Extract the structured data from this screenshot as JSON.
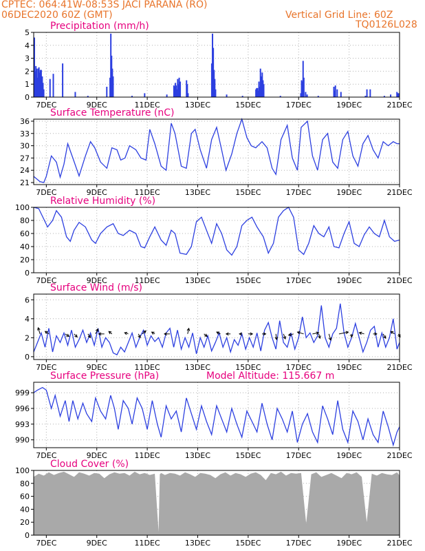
{
  "header": {
    "line1_left": "CPTEC:   064:41W-08:53S   JACI PARANA (RO)",
    "line2_left": "06DEC2020 60Z (GMT)",
    "line1_right": "Vertical Grid Line: 60Z",
    "line2_right": "TQ0126L028"
  },
  "colors": {
    "header": "#e8742a",
    "title": "#e6007e",
    "series": "#2c3fe0",
    "cloud": "#a9a9a9",
    "grid": "#b0b0b0"
  },
  "chart_data": [
    {
      "type": "bar",
      "title": "Precipitation (mm/h)",
      "x_tick_labels": [
        "7DEC",
        "9DEC",
        "11DEC",
        "13DEC",
        "15DEC",
        "17DEC",
        "19DEC",
        "21DEC"
      ],
      "x_day_range": [
        6.5,
        21.0
      ],
      "ylim": [
        0,
        5
      ],
      "y_ticks": [
        0,
        1,
        2,
        3,
        4,
        5
      ],
      "grid": true,
      "x": [
        6.5,
        6.53,
        6.56,
        6.59,
        6.62,
        6.65,
        6.68,
        6.71,
        6.74,
        6.77,
        6.81,
        6.84,
        6.87,
        7.12,
        7.25,
        7.62,
        8.12,
        8.62,
        9.37,
        9.5,
        9.53,
        9.56,
        9.59,
        9.62,
        10.37,
        10.87,
        11.75,
        12.03,
        12.06,
        12.09,
        12.12,
        12.15,
        12.18,
        12.21,
        12.24,
        12.28,
        12.53,
        12.56,
        12.59,
        13.53,
        13.56,
        13.59,
        13.62,
        13.65,
        13.68,
        14.12,
        14.75,
        15.28,
        15.31,
        15.34,
        15.37,
        15.4,
        15.43,
        15.46,
        15.5,
        15.53,
        15.56,
        15.59,
        16.25,
        17.06,
        17.09,
        17.12,
        17.15,
        17.18,
        17.25,
        17.31,
        17.75,
        18.37,
        18.4,
        18.43,
        18.5,
        18.65,
        19.62,
        19.68,
        19.81,
        20.37,
        20.62,
        20.87,
        20.9,
        20.93
      ],
      "values": [
        4.6,
        2.0,
        2.4,
        2.2,
        1.5,
        2.2,
        2.3,
        1.9,
        2.1,
        2.1,
        1.6,
        1.1,
        0.6,
        1.4,
        1.8,
        2.6,
        0.4,
        0.1,
        0.8,
        1.5,
        4.9,
        3.2,
        2.2,
        1.6,
        0.1,
        0.3,
        0.2,
        0.9,
        0.8,
        1.1,
        0.9,
        0.6,
        1.4,
        1.0,
        1.5,
        1.2,
        1.3,
        1.0,
        0.3,
        2.6,
        4.9,
        3.8,
        2.1,
        1.4,
        0.6,
        0.2,
        0.1,
        0.6,
        0.7,
        0.7,
        0.5,
        1.2,
        0.8,
        2.2,
        1.6,
        1.9,
        1.3,
        1.0,
        0.1,
        0.3,
        1.3,
        1.2,
        2.8,
        1.5,
        0.4,
        0.2,
        0.1,
        0.8,
        0.5,
        0.9,
        0.6,
        0.4,
        0.1,
        0.6,
        0.6,
        0.1,
        0.2,
        0.4,
        0.3,
        0.3
      ]
    },
    {
      "type": "line",
      "title": "Surface Temperature (nC)",
      "x_tick_labels": [
        "7DEC",
        "9DEC",
        "11DEC",
        "13DEC",
        "15DEC",
        "17DEC",
        "19DEC",
        "21DEC"
      ],
      "x_day_range": [
        6.5,
        21.0
      ],
      "ylim": [
        20.5,
        36.5
      ],
      "y_ticks": [
        21,
        24,
        27,
        30,
        33,
        36
      ],
      "grid": true,
      "x": [
        6.5,
        6.75,
        6.9,
        7.0,
        7.2,
        7.4,
        7.55,
        7.7,
        7.85,
        8.05,
        8.3,
        8.55,
        8.75,
        8.92,
        9.15,
        9.4,
        9.6,
        9.8,
        9.95,
        10.12,
        10.3,
        10.55,
        10.75,
        10.95,
        11.1,
        11.3,
        11.55,
        11.75,
        11.95,
        12.1,
        12.35,
        12.55,
        12.75,
        12.9,
        13.1,
        13.35,
        13.55,
        13.75,
        13.95,
        14.12,
        14.35,
        14.55,
        14.75,
        14.95,
        15.12,
        15.3,
        15.55,
        15.75,
        15.95,
        16.1,
        16.3,
        16.55,
        16.75,
        16.95,
        17.1,
        17.35,
        17.55,
        17.75,
        17.95,
        18.15,
        18.35,
        18.55,
        18.75,
        18.95,
        19.15,
        19.35,
        19.55,
        19.75,
        19.95,
        20.15,
        20.35,
        20.55,
        20.75,
        20.9,
        21.0
      ],
      "values": [
        22.5,
        21.2,
        21.0,
        22.5,
        27.5,
        26.0,
        22.3,
        25.5,
        30.5,
        27.0,
        22.6,
        27.5,
        31.0,
        29.5,
        26.0,
        24.5,
        29.5,
        29.0,
        26.5,
        27.0,
        30.0,
        29.0,
        27.0,
        26.5,
        34.0,
        30.5,
        25.0,
        24.0,
        35.5,
        33.0,
        25.0,
        24.5,
        33.0,
        34.0,
        29.0,
        24.5,
        31.5,
        34.5,
        29.0,
        24.0,
        28.0,
        33.0,
        36.5,
        32.0,
        30.0,
        29.5,
        31.0,
        29.5,
        24.5,
        23.0,
        31.5,
        35.0,
        27.0,
        24.0,
        34.5,
        36.0,
        27.5,
        24.0,
        31.5,
        33.0,
        26.0,
        24.5,
        31.5,
        33.5,
        27.5,
        25.0,
        30.5,
        32.5,
        29.0,
        27.0,
        31.0,
        30.0,
        31.0,
        30.5,
        30.5
      ]
    },
    {
      "type": "line",
      "title": "Relative Humidity (%)",
      "x_tick_labels": [
        "7DEC",
        "9DEC",
        "11DEC",
        "13DEC",
        "15DEC",
        "17DEC",
        "19DEC",
        "21DEC"
      ],
      "x_day_range": [
        6.5,
        21.0
      ],
      "ylim": [
        0,
        100
      ],
      "y_ticks": [
        0,
        20,
        40,
        60,
        80,
        100
      ],
      "grid": true,
      "x": [
        6.5,
        6.7,
        6.9,
        7.05,
        7.25,
        7.4,
        7.6,
        7.8,
        7.95,
        8.1,
        8.3,
        8.55,
        8.8,
        8.95,
        9.15,
        9.4,
        9.65,
        9.85,
        10.05,
        10.3,
        10.55,
        10.75,
        10.9,
        11.1,
        11.3,
        11.55,
        11.75,
        11.95,
        12.1,
        12.3,
        12.55,
        12.75,
        12.95,
        13.15,
        13.35,
        13.55,
        13.75,
        13.95,
        14.15,
        14.35,
        14.55,
        14.75,
        14.95,
        15.15,
        15.35,
        15.6,
        15.8,
        16.0,
        16.2,
        16.4,
        16.6,
        16.8,
        17.0,
        17.2,
        17.4,
        17.6,
        17.8,
        18.0,
        18.2,
        18.4,
        18.6,
        18.8,
        19.0,
        19.2,
        19.4,
        19.6,
        19.8,
        20.0,
        20.2,
        20.4,
        20.6,
        20.8,
        21.0
      ],
      "values": [
        100,
        98,
        82,
        70,
        80,
        95,
        85,
        55,
        48,
        65,
        77,
        70,
        50,
        45,
        60,
        70,
        75,
        60,
        57,
        65,
        60,
        40,
        38,
        55,
        70,
        50,
        42,
        65,
        60,
        30,
        28,
        40,
        78,
        85,
        65,
        45,
        75,
        60,
        35,
        27,
        40,
        72,
        80,
        85,
        70,
        55,
        30,
        45,
        85,
        95,
        100,
        85,
        35,
        28,
        45,
        72,
        60,
        55,
        70,
        40,
        38,
        60,
        78,
        45,
        40,
        58,
        70,
        60,
        55,
        80,
        55,
        48,
        50
      ]
    },
    {
      "type": "line",
      "title": "Surface Wind (m/s)",
      "x_tick_labels": [
        "7DEC",
        "9DEC",
        "11DEC",
        "13DEC",
        "15DEC",
        "17DEC",
        "19DEC",
        "21DEC"
      ],
      "x_day_range": [
        6.5,
        21.0
      ],
      "ylim": [
        -0.3,
        6.6
      ],
      "y_ticks": [
        0,
        2,
        4,
        6
      ],
      "grid": true,
      "x": [
        6.5,
        6.65,
        6.8,
        6.95,
        7.1,
        7.25,
        7.4,
        7.55,
        7.7,
        7.85,
        8.0,
        8.15,
        8.3,
        8.45,
        8.6,
        8.75,
        8.9,
        9.05,
        9.2,
        9.35,
        9.5,
        9.65,
        9.8,
        9.95,
        10.1,
        10.25,
        10.4,
        10.55,
        10.7,
        10.85,
        11.0,
        11.15,
        11.3,
        11.45,
        11.6,
        11.75,
        11.9,
        12.05,
        12.2,
        12.35,
        12.5,
        12.65,
        12.8,
        12.95,
        13.1,
        13.25,
        13.4,
        13.55,
        13.7,
        13.85,
        14.0,
        14.15,
        14.3,
        14.45,
        14.6,
        14.75,
        14.9,
        15.05,
        15.2,
        15.35,
        15.5,
        15.65,
        15.8,
        15.95,
        16.1,
        16.25,
        16.4,
        16.55,
        16.7,
        16.85,
        17.0,
        17.15,
        17.3,
        17.45,
        17.6,
        17.75,
        17.9,
        18.05,
        18.2,
        18.35,
        18.5,
        18.65,
        18.8,
        18.95,
        19.1,
        19.25,
        19.4,
        19.55,
        19.7,
        19.85,
        20.0,
        20.15,
        20.3,
        20.45,
        20.6,
        20.75,
        20.9,
        21.0
      ],
      "values": [
        0.5,
        1.5,
        2.5,
        1.0,
        3.0,
        0.5,
        2.2,
        1.5,
        2.5,
        1.2,
        2.8,
        1.0,
        1.8,
        2.8,
        1.5,
        2.5,
        1.2,
        3.0,
        1.0,
        2.0,
        1.5,
        0.4,
        0.2,
        1.0,
        0.5,
        1.5,
        2.5,
        1.0,
        2.0,
        2.8,
        1.2,
        2.2,
        1.6,
        2.0,
        1.0,
        2.5,
        3.0,
        1.0,
        2.8,
        0.8,
        2.0,
        1.0,
        2.5,
        0.3,
        2.0,
        1.0,
        2.2,
        0.6,
        1.5,
        2.5,
        1.0,
        2.0,
        0.5,
        1.8,
        1.2,
        2.4,
        0.8,
        2.0,
        1.0,
        2.5,
        0.6,
        2.8,
        3.6,
        2.0,
        0.8,
        3.8,
        1.5,
        1.0,
        2.5,
        0.8,
        2.0,
        4.2,
        2.0,
        2.5,
        1.5,
        2.2,
        5.4,
        2.0,
        1.0,
        2.4,
        3.0,
        5.6,
        2.5,
        1.0,
        2.0,
        3.5,
        2.0,
        0.5,
        1.5,
        2.8,
        3.2,
        1.0,
        2.5,
        1.0,
        2.0,
        4.0,
        0.8,
        1.5
      ],
      "wind_arrows": [
        {
          "day": 6.75,
          "u": -0.3,
          "v": 1.0
        },
        {
          "day": 7.1,
          "u": -0.6,
          "v": 0.4
        },
        {
          "day": 7.75,
          "u": 0.6,
          "v": -0.4
        },
        {
          "day": 8.1,
          "u": 0.5,
          "v": -0.5
        },
        {
          "day": 8.65,
          "u": 0.4,
          "v": -0.6
        },
        {
          "day": 8.95,
          "u": 0.4,
          "v": 0.8
        },
        {
          "day": 9.3,
          "u": -0.9,
          "v": 0.0
        },
        {
          "day": 9.6,
          "u": -0.5,
          "v": 0.4
        },
        {
          "day": 10.25,
          "u": -0.6,
          "v": 0.2
        },
        {
          "day": 10.65,
          "u": 0.3,
          "v": -0.6
        },
        {
          "day": 10.8,
          "u": 0.6,
          "v": 0.5
        },
        {
          "day": 11.3,
          "u": -0.5,
          "v": 0.3
        },
        {
          "day": 11.9,
          "u": -0.9,
          "v": 0.0
        },
        {
          "day": 12.6,
          "u": 0.2,
          "v": 0.9
        },
        {
          "day": 13.25,
          "u": 0.5,
          "v": -0.4
        },
        {
          "day": 13.9,
          "u": -0.6,
          "v": 0.3
        },
        {
          "day": 14.3,
          "u": -0.7,
          "v": 0.0
        },
        {
          "day": 14.75,
          "u": -0.4,
          "v": 0.0
        },
        {
          "day": 15.0,
          "u": 0.7,
          "v": 0.0
        },
        {
          "day": 15.55,
          "u": 0.6,
          "v": 0.0
        },
        {
          "day": 16.1,
          "u": 0.1,
          "v": -0.9
        },
        {
          "day": 16.4,
          "u": 0.3,
          "v": -0.8
        },
        {
          "day": 16.8,
          "u": -0.8,
          "v": -0.2
        },
        {
          "day": 17.2,
          "u": -1.0,
          "v": 0.3
        },
        {
          "day": 17.55,
          "u": 1.0,
          "v": 0.2
        },
        {
          "day": 17.8,
          "u": 0.2,
          "v": -0.7
        },
        {
          "day": 18.2,
          "u": 0.3,
          "v": -1.0
        },
        {
          "day": 18.6,
          "u": 1.5,
          "v": 0.3
        },
        {
          "day": 19.1,
          "u": 0.0,
          "v": -0.5
        },
        {
          "day": 19.6,
          "u": -0.8,
          "v": 0.2
        },
        {
          "day": 19.95,
          "u": 0.6,
          "v": 0.0
        },
        {
          "day": 20.35,
          "u": 0.4,
          "v": -0.7
        },
        {
          "day": 20.8,
          "u": -0.6,
          "v": 0.4
        },
        {
          "day": 20.95,
          "u": 0.3,
          "v": -0.5
        }
      ]
    },
    {
      "type": "line",
      "title": "Surface Pressure (hPa)",
      "annotation": "Model Altitude: 115.667 m",
      "x_tick_labels": [
        "7DEC",
        "9DEC",
        "11DEC",
        "13DEC",
        "15DEC",
        "17DEC",
        "19DEC",
        "21DEC"
      ],
      "x_day_range": [
        6.5,
        21.0
      ],
      "ylim": [
        988.5,
        1001.0
      ],
      "y_ticks": [
        990,
        993,
        996,
        999
      ],
      "grid": true,
      "x": [
        6.5,
        6.65,
        6.85,
        7.0,
        7.2,
        7.35,
        7.55,
        7.75,
        7.9,
        8.05,
        8.25,
        8.45,
        8.6,
        8.8,
        8.95,
        9.15,
        9.35,
        9.55,
        9.7,
        9.85,
        10.05,
        10.25,
        10.4,
        10.6,
        10.8,
        11.0,
        11.2,
        11.4,
        11.55,
        11.75,
        11.95,
        12.15,
        12.35,
        12.55,
        12.75,
        12.95,
        13.15,
        13.35,
        13.55,
        13.75,
        13.95,
        14.15,
        14.35,
        14.55,
        14.75,
        14.95,
        15.15,
        15.35,
        15.55,
        15.75,
        15.95,
        16.15,
        16.35,
        16.55,
        16.75,
        16.95,
        17.15,
        17.35,
        17.55,
        17.75,
        17.95,
        18.15,
        18.35,
        18.55,
        18.75,
        18.95,
        19.15,
        19.35,
        19.55,
        19.75,
        19.95,
        20.15,
        20.35,
        20.55,
        20.75,
        20.9,
        21.0
      ],
      "values": [
        999.0,
        999.5,
        1000.0,
        999.5,
        996.0,
        998.5,
        994.5,
        997.5,
        993.5,
        997.5,
        994.0,
        997.0,
        995.0,
        993.5,
        998.0,
        995.5,
        994.0,
        998.5,
        996.0,
        992.0,
        997.5,
        996.0,
        993.0,
        998.0,
        996.0,
        992.0,
        997.5,
        993.0,
        990.5,
        996.5,
        994.0,
        995.5,
        991.5,
        998.0,
        995.0,
        992.0,
        996.5,
        993.5,
        991.0,
        996.5,
        994.0,
        991.5,
        996.0,
        993.0,
        990.5,
        995.5,
        993.5,
        991.5,
        997.0,
        993.0,
        990.0,
        996.0,
        994.0,
        991.5,
        995.5,
        989.5,
        993.0,
        995.0,
        991.5,
        989.5,
        996.5,
        994.0,
        991.0,
        997.5,
        992.0,
        989.5,
        995.5,
        993.5,
        990.0,
        994.0,
        991.0,
        989.5,
        995.5,
        992.5,
        989.0,
        991.5,
        992.5
      ]
    },
    {
      "type": "area",
      "title": "Cloud Cover (%)",
      "x_tick_labels": [
        "7DEC",
        "9DEC",
        "11DEC",
        "13DEC",
        "15DEC",
        "17DEC",
        "19DEC",
        "21DEC"
      ],
      "x_day_range": [
        6.5,
        21.0
      ],
      "ylim": [
        0,
        100
      ],
      "y_ticks": [
        0,
        20,
        40,
        60,
        80,
        100
      ],
      "grid": true,
      "x": [
        6.5,
        6.7,
        6.9,
        7.1,
        7.3,
        7.5,
        7.7,
        7.9,
        8.1,
        8.3,
        8.5,
        8.7,
        8.9,
        9.1,
        9.3,
        9.5,
        9.7,
        9.9,
        10.1,
        10.3,
        10.5,
        10.7,
        10.9,
        11.1,
        11.3,
        11.45,
        11.5,
        11.55,
        11.7,
        11.9,
        12.1,
        12.3,
        12.5,
        12.7,
        12.9,
        13.1,
        13.3,
        13.5,
        13.7,
        13.9,
        14.1,
        14.3,
        14.5,
        14.7,
        14.9,
        15.1,
        15.3,
        15.5,
        15.7,
        15.9,
        16.1,
        16.3,
        16.5,
        16.7,
        16.9,
        17.1,
        17.3,
        17.5,
        17.7,
        17.9,
        18.1,
        18.3,
        18.5,
        18.7,
        18.9,
        19.1,
        19.3,
        19.5,
        19.7,
        19.9,
        20.1,
        20.3,
        20.5,
        20.7,
        20.9,
        21.0
      ],
      "values": [
        90,
        95,
        92,
        97,
        93,
        96,
        98,
        94,
        90,
        97,
        95,
        92,
        96,
        95,
        88,
        94,
        97,
        95,
        96,
        92,
        98,
        94,
        96,
        93,
        95,
        5,
        94,
        96,
        93,
        96,
        95,
        92,
        97,
        94,
        90,
        96,
        95,
        93,
        88,
        94,
        97,
        92,
        96,
        94,
        90,
        95,
        97,
        93,
        85,
        96,
        94,
        98,
        92,
        96,
        95,
        96,
        18,
        94,
        97,
        90,
        93,
        96,
        92,
        88,
        96,
        94,
        97,
        90,
        20,
        95,
        92,
        96,
        94,
        93,
        97,
        92
      ]
    }
  ]
}
